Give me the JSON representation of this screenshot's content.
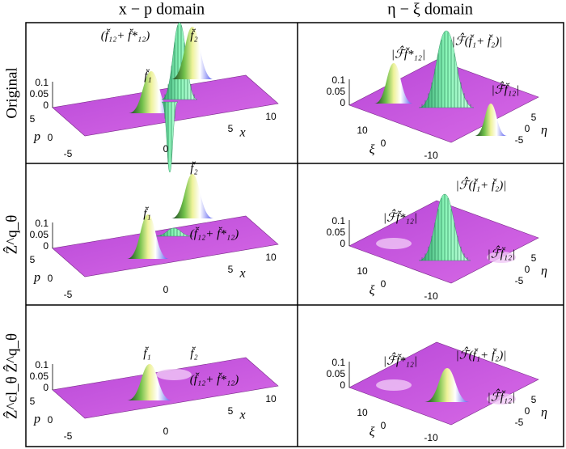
{
  "columns": [
    "x − p domain",
    "η − ξ domain"
  ],
  "rows": [
    {
      "label": "Original",
      "panels": [
        {
          "annotations": [
            "(f̆₁₂+ f̆*₁₂)",
            "f̆₂",
            "f̆₁"
          ]
        },
        {
          "annotations": [
            "|ℱ̂f̆*₁₂|",
            "|ℱ̂(f̆₁+ f̆₂)|",
            "|ℱ̂f̆₁₂|"
          ]
        }
      ]
    },
    {
      "label": "Ẑ^q_θ",
      "panels": [
        {
          "annotations": [
            "f̆₂",
            "f̆₁",
            "(f̆₁₂+ f̆*₁₂)"
          ]
        },
        {
          "annotations": [
            "|ℱ̂(f̆₁+ f̆₂)|",
            "|ℱ̂f̆*₁₂|",
            "|ℱ̂f̆₁₂|"
          ]
        }
      ]
    },
    {
      "label": "Ẑ^cl_θ Ẑ^q_θ",
      "panels": [
        {
          "annotations": [
            "f̆₁",
            "f̆₂",
            "(f̆₁₂+ f̆*₁₂)"
          ]
        },
        {
          "annotations": [
            "|ℱ̂f̆*₁₂|",
            "|ℱ̂(f̆₁+ f̆₂)|",
            "|ℱ̂f̆₁₂|"
          ]
        }
      ]
    }
  ],
  "left_axes": {
    "z_ticks": [
      0.1,
      0.05,
      0
    ],
    "p_ticks": [
      5,
      0,
      -5
    ],
    "x_ticks": [
      0,
      5,
      10
    ],
    "p_label": "p",
    "x_label": "x"
  },
  "right_axes": {
    "z_ticks": [
      0.1,
      0.05,
      0
    ],
    "xi_ticks": [
      10,
      0,
      -10
    ],
    "eta_ticks": [
      5,
      0,
      -5
    ],
    "xi_label": "ξ",
    "eta_label": "η"
  }
}
